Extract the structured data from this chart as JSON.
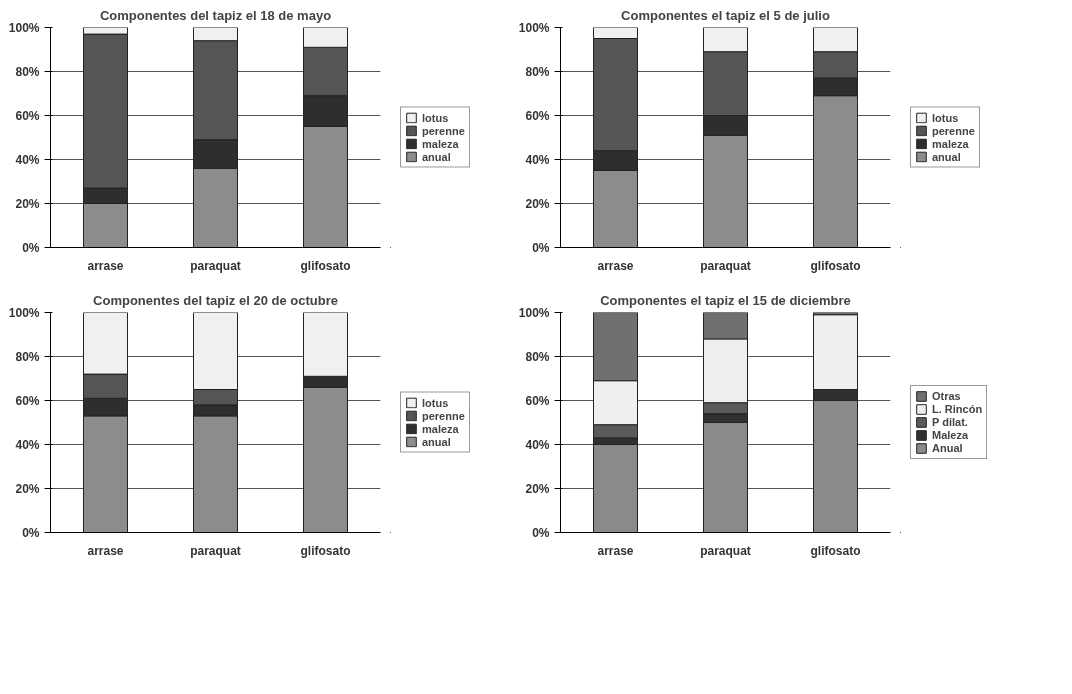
{
  "chart_data": [
    {
      "type": "bar",
      "stacked": true,
      "title": "Componentes del tapiz el 18 de mayo",
      "categories": [
        "arrase",
        "paraquat",
        "glifosato"
      ],
      "ylim": [
        0,
        100
      ],
      "yticks": [
        {
          "value": 0,
          "label": "0%"
        },
        {
          "value": 20,
          "label": "20%"
        },
        {
          "value": 40,
          "label": "40%"
        },
        {
          "value": 60,
          "label": "60%"
        },
        {
          "value": 80,
          "label": "80%"
        },
        {
          "value": 100,
          "label": "100%"
        }
      ],
      "grid": "y",
      "legend": "right",
      "series": [
        {
          "name": "anual",
          "color": "#8c8c8c",
          "values": [
            20,
            36,
            55
          ]
        },
        {
          "name": "maleza",
          "color": "#2e2e2e",
          "values": [
            7,
            13,
            14
          ]
        },
        {
          "name": "perenne",
          "color": "#555555",
          "values": [
            70,
            45,
            22
          ]
        },
        {
          "name": "lotus",
          "color": "#f0f0f0",
          "values": [
            3,
            6,
            9
          ]
        }
      ]
    },
    {
      "type": "bar",
      "stacked": true,
      "title": "Componentes el tapiz el 5 de julio",
      "categories": [
        "arrase",
        "paraquat",
        "glifosato"
      ],
      "ylim": [
        0,
        100
      ],
      "yticks": [
        {
          "value": 0,
          "label": "0%"
        },
        {
          "value": 20,
          "label": "20%"
        },
        {
          "value": 40,
          "label": "40%"
        },
        {
          "value": 60,
          "label": "60%"
        },
        {
          "value": 80,
          "label": "80%"
        },
        {
          "value": 100,
          "label": "100%"
        }
      ],
      "grid": "y",
      "legend": "right",
      "series": [
        {
          "name": "anual",
          "color": "#8c8c8c",
          "values": [
            35,
            51,
            69
          ]
        },
        {
          "name": "maleza",
          "color": "#2e2e2e",
          "values": [
            9,
            9,
            8
          ]
        },
        {
          "name": "perenne",
          "color": "#555555",
          "values": [
            51,
            29,
            12
          ]
        },
        {
          "name": "lotus",
          "color": "#f0f0f0",
          "values": [
            5,
            11,
            11
          ]
        }
      ]
    },
    {
      "type": "bar",
      "stacked": true,
      "title": "Componentes del tapiz el 20 de octubre",
      "categories": [
        "arrase",
        "paraquat",
        "glifosato"
      ],
      "ylim": [
        0,
        100
      ],
      "yticks": [
        {
          "value": 0,
          "label": "0%"
        },
        {
          "value": 20,
          "label": "20%"
        },
        {
          "value": 40,
          "label": "40%"
        },
        {
          "value": 60,
          "label": "60%"
        },
        {
          "value": 80,
          "label": "80%"
        },
        {
          "value": 100,
          "label": "100%"
        }
      ],
      "grid": "y",
      "legend": "right",
      "series": [
        {
          "name": "anual",
          "color": "#8c8c8c",
          "values": [
            53,
            53,
            66
          ]
        },
        {
          "name": "maleza",
          "color": "#2e2e2e",
          "values": [
            8,
            5,
            5
          ]
        },
        {
          "name": "perenne",
          "color": "#555555",
          "values": [
            11,
            7,
            0
          ]
        },
        {
          "name": "lotus",
          "color": "#f0f0f0",
          "values": [
            28,
            35,
            29
          ]
        }
      ]
    },
    {
      "type": "bar",
      "stacked": true,
      "title": "Componentes el tapiz el 15 de diciembre",
      "categories": [
        "arrase",
        "paraquat",
        "glifosato"
      ],
      "ylim": [
        0,
        100
      ],
      "yticks": [
        {
          "value": 0,
          "label": "0%"
        },
        {
          "value": 20,
          "label": "20%"
        },
        {
          "value": 40,
          "label": "40%"
        },
        {
          "value": 60,
          "label": "60%"
        },
        {
          "value": 80,
          "label": "80%"
        },
        {
          "value": 100,
          "label": "100%"
        }
      ],
      "grid": "y",
      "legend": "right",
      "series": [
        {
          "name": "Anual",
          "color": "#8a8a8a",
          "values": [
            40,
            50,
            60
          ]
        },
        {
          "name": "Maleza",
          "color": "#303030",
          "values": [
            3,
            4,
            5
          ]
        },
        {
          "name": "P dilat.",
          "color": "#5a5a5a",
          "values": [
            6,
            5,
            0
          ]
        },
        {
          "name": "L. Rincón",
          "color": "#efefef",
          "values": [
            20,
            29,
            34
          ]
        },
        {
          "name": "Otras",
          "color": "#707070",
          "values": [
            31,
            12,
            1
          ]
        }
      ]
    }
  ]
}
